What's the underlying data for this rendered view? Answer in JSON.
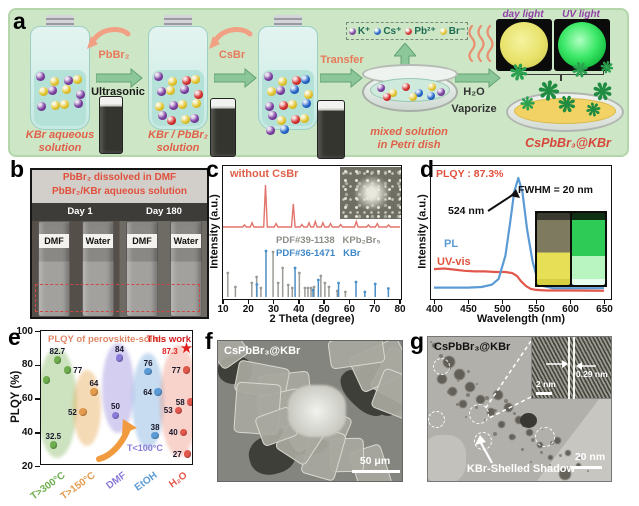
{
  "panels": {
    "a": "a",
    "b": "b",
    "c": "c",
    "d": "d",
    "e": "e",
    "f": "f",
    "g": "g"
  },
  "panel_a": {
    "reagent1": "PbBr₂",
    "method1": "Ultrasonic",
    "reagent2": "CsBr",
    "action": "Transfer",
    "jar1_caption": "KBr aqueous\nsolution",
    "jar2_caption": "KBr / PbBr₂\nsolution",
    "dish_caption": "mixed solution\nin Petri dish",
    "evap1": "H₂O",
    "evap2": "Vaporize",
    "photo1_label": "day light",
    "photo2_label": "UV light",
    "product": "CsPbBr₃@KBr",
    "ions": [
      {
        "label": "K⁺",
        "color": "#7b3fa0"
      },
      {
        "label": "Cs⁺",
        "color": "#2465c8"
      },
      {
        "label": "Pb²⁺",
        "color": "#d42f2f"
      },
      {
        "label": "Br⁻",
        "color": "#e3c52f"
      }
    ]
  },
  "panel_b": {
    "title_line1": "PbBr₂ dissolved in DMF",
    "title_line2": "PbBr₂/KBr aqueous solution",
    "day1": "Day 1",
    "day2": "Day 180",
    "vials": [
      "DMF",
      "Water",
      "DMF",
      "Water"
    ]
  },
  "panel_f": {
    "sample": "CsPbBr₃@KBr",
    "scalebar": "50 μm"
  },
  "panel_g": {
    "sample": "CsPbBr₃@KBr",
    "scalebar": "20 nm",
    "inset_scalebar": "2 nm",
    "lattice": "0.29 nm",
    "shadow": "KBr-Shelled Shadow"
  },
  "chart_data": [
    {
      "type": "line+sticks",
      "panel": "c",
      "annotation": "without CsBr",
      "xlabel": "2 Theta (degree)",
      "ylabel": "Intensity (a.u.)",
      "xlim": [
        10,
        80
      ],
      "xticks": [
        10,
        20,
        30,
        40,
        50,
        60,
        70,
        80
      ],
      "series": [
        {
          "name": "without CsBr",
          "type": "line",
          "color": "#e2756b",
          "peaks": [
            [
              18.5,
              0.05
            ],
            [
              21.5,
              0.1
            ],
            [
              26.8,
              1.0
            ],
            [
              31.0,
              0.08
            ],
            [
              37.8,
              0.55
            ],
            [
              41.2,
              0.06
            ],
            [
              44.0,
              0.1
            ],
            [
              46.5,
              0.13
            ],
            [
              49.5,
              0.1
            ],
            [
              52.5,
              0.08
            ],
            [
              56.5,
              0.06
            ],
            [
              62.7,
              0.13
            ],
            [
              67.5,
              0.05
            ],
            [
              71.0,
              0.08
            ],
            [
              75.5,
              0.05
            ]
          ]
        },
        {
          "name": "KPb₂Br₅",
          "ref": "PDF#39-1138",
          "type": "sticks",
          "color": "#9b9b96",
          "sticks": [
            [
              11.9,
              0.48
            ],
            [
              14.9,
              0.2
            ],
            [
              21.4,
              0.28
            ],
            [
              23.3,
              0.4
            ],
            [
              25.0,
              0.18
            ],
            [
              29.8,
              0.9
            ],
            [
              31.8,
              0.28
            ],
            [
              33.6,
              0.58
            ],
            [
              35.8,
              0.24
            ],
            [
              37.4,
              0.18
            ],
            [
              40.2,
              0.48
            ],
            [
              42.4,
              0.18
            ],
            [
              43.6,
              0.18
            ],
            [
              44.8,
              0.18
            ],
            [
              46.0,
              0.2
            ],
            [
              48.7,
              0.42
            ],
            [
              50.3,
              0.28
            ],
            [
              51.9,
              0.2
            ],
            [
              55.2,
              0.12
            ],
            [
              58.4,
              0.1
            ]
          ]
        },
        {
          "name": "KBr",
          "ref": "PDF#36-1471",
          "type": "sticks",
          "color": "#4a8fc8",
          "sticks": [
            [
              23.4,
              0.25
            ],
            [
              27.0,
              0.92
            ],
            [
              38.5,
              0.58
            ],
            [
              45.6,
              0.14
            ],
            [
              47.7,
              0.34
            ],
            [
              55.7,
              0.28
            ],
            [
              62.6,
              0.3
            ],
            [
              66.1,
              0.1
            ],
            [
              70.2,
              0.26
            ],
            [
              75.4,
              0.17
            ]
          ]
        }
      ]
    },
    {
      "type": "line",
      "panel": "d",
      "annotations": {
        "plqy": "PLQY : 87.3%",
        "fwhm": "FWHM = 20 nm",
        "peak": "524 nm",
        "pl": "PL",
        "uv": "UV-vis"
      },
      "xlabel": "Wavelength (nm)",
      "ylabel": "Intensity (a.u.)",
      "xlim": [
        400,
        650
      ],
      "xticks": [
        400,
        450,
        500,
        550,
        600,
        650
      ],
      "series": [
        {
          "name": "PL",
          "color": "#5b9bd5",
          "points": [
            [
              400,
              0.055
            ],
            [
              450,
              0.055
            ],
            [
              470,
              0.06
            ],
            [
              485,
              0.08
            ],
            [
              495,
              0.13
            ],
            [
              505,
              0.33
            ],
            [
              512,
              0.62
            ],
            [
              518,
              0.88
            ],
            [
              524,
              1.0
            ],
            [
              530,
              0.88
            ],
            [
              537,
              0.55
            ],
            [
              545,
              0.28
            ],
            [
              552,
              0.13
            ],
            [
              560,
              0.07
            ],
            [
              575,
              0.05
            ],
            [
              600,
              0.05
            ],
            [
              650,
              0.05
            ]
          ]
        },
        {
          "name": "UV-vis",
          "color": "#e2574b",
          "points": [
            [
              400,
              0.215
            ],
            [
              415,
              0.22
            ],
            [
              430,
              0.21
            ],
            [
              445,
              0.2
            ],
            [
              460,
              0.195
            ],
            [
              475,
              0.195
            ],
            [
              490,
              0.19
            ],
            [
              505,
              0.19
            ],
            [
              515,
              0.18
            ],
            [
              522,
              0.155
            ],
            [
              528,
              0.11
            ],
            [
              535,
              0.07
            ],
            [
              542,
              0.045
            ],
            [
              550,
              0.035
            ],
            [
              565,
              0.03
            ],
            [
              600,
              0.03
            ],
            [
              650,
              0.028
            ]
          ]
        }
      ]
    },
    {
      "type": "scatter",
      "panel": "e",
      "title": "PLQY of perovskite-solids",
      "ylabel": "PLQY (%)",
      "ylim": [
        20,
        100
      ],
      "yticks": [
        20,
        40,
        60,
        80,
        100
      ],
      "highlight_label": "This work",
      "annotation": "T<100°C",
      "groups": [
        {
          "label": "T>300°C",
          "color": "#6fae4f",
          "points": [
            {
              "v": 71,
              "dx": -10,
              "side": "left"
            },
            {
              "v": 82.7,
              "dx": 1,
              "side": "top"
            },
            {
              "v": 77,
              "dx": 11,
              "side": "right"
            },
            {
              "v": 32.5,
              "dx": -3,
              "side": "top"
            }
          ]
        },
        {
          "label": "T>150°C",
          "color": "#e39b4e",
          "points": [
            {
              "v": 52,
              "dx": -4,
              "side": "left"
            },
            {
              "v": 64,
              "dx": 7,
              "side": "top"
            }
          ]
        },
        {
          "label": "DMF",
          "color": "#8b7bd8",
          "points": [
            {
              "v": 50,
              "dx": -2,
              "side": "top"
            },
            {
              "v": 84,
              "dx": 2,
              "side": "top"
            }
          ]
        },
        {
          "label": "EtOH",
          "color": "#5b9bd5",
          "points": [
            {
              "v": 76,
              "dx": 0,
              "side": "top"
            },
            {
              "v": 64,
              "dx": 10,
              "side": "left"
            },
            {
              "v": 38,
              "dx": 7,
              "side": "top"
            }
          ]
        },
        {
          "label": "H₂O",
          "color": "#e2574b",
          "points": [
            {
              "v": 53,
              "dx": 0,
              "side": "left"
            },
            {
              "v": 77,
              "dx": 8,
              "side": "left"
            },
            {
              "v": 58,
              "dx": 12,
              "side": "left"
            },
            {
              "v": 40,
              "dx": 5,
              "side": "left"
            },
            {
              "v": 27,
              "dx": 9,
              "side": "left"
            }
          ]
        }
      ],
      "highlight": {
        "group": "H₂O",
        "value": 87.3,
        "marker": "star",
        "color": "#e01f1f"
      }
    }
  ]
}
